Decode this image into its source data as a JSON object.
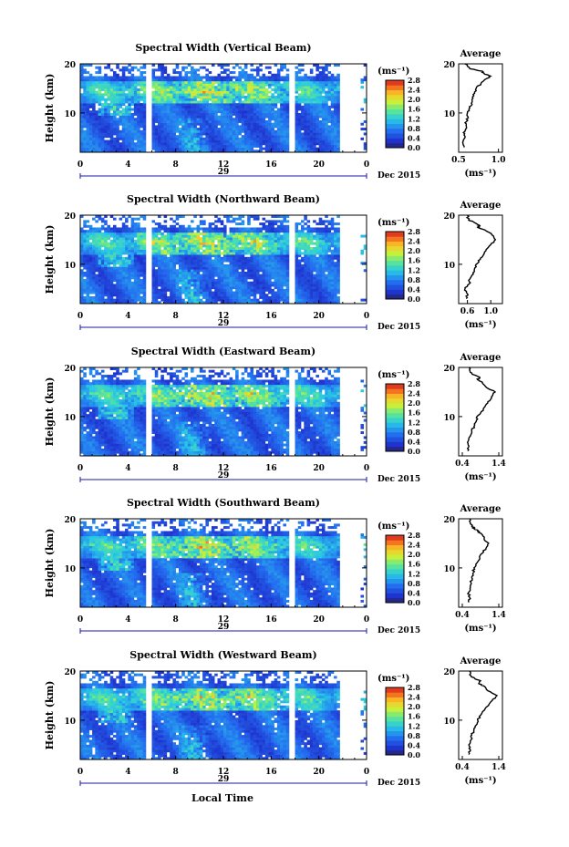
{
  "figure": {
    "panel_titles": [
      "Spectral Width (Vertical Beam)",
      "Spectral Width (Northward Beam)",
      "Spectral Width (Eastward Beam)",
      "Spectral Width (Southward Beam)",
      "Spectral Width (Westward Beam)"
    ],
    "ylabel": "Height (km)",
    "date_label": "29",
    "month_label": "Dec 2015",
    "xlabel": "Local Time",
    "colorbar_unit": "(ms⁻¹)",
    "average_title": "Average",
    "average_unit": "(ms⁻¹)"
  },
  "chart_data": [
    {
      "type": "heatmap",
      "title": "Spectral Width (Vertical Beam)",
      "ylabel": "Height (km)",
      "x_ticks": [
        "0",
        "4",
        "8",
        "12",
        "16",
        "20",
        "0"
      ],
      "y_ticks": [
        "10",
        "20"
      ],
      "xlim": [
        0,
        24
      ],
      "ylim": [
        2,
        20
      ],
      "data_gaps_hours": [
        [
          5.5,
          6.0
        ],
        [
          17.6,
          18.1
        ],
        [
          21.8,
          22.7
        ]
      ],
      "colorbar_ticks": [
        "2.8",
        "2.4",
        "2.0",
        "1.6",
        "1.2",
        "0.8",
        "0.4",
        "0.0"
      ],
      "average_profile": {
        "title": "Average",
        "xlabel": "(ms⁻¹)",
        "x_ticks": [
          "0.5",
          "1.0"
        ],
        "xlim": [
          0.5,
          1.05
        ],
        "y_ticks": [
          "10",
          "20"
        ],
        "width": [
          0.57,
          0.55,
          0.58,
          0.56,
          0.6,
          0.58,
          0.62,
          0.61,
          0.64,
          0.66,
          0.68,
          0.7,
          0.72,
          0.78,
          0.85,
          0.9,
          0.82,
          0.8,
          0.64,
          0.58
        ],
        "height_km": [
          3,
          4,
          5,
          6,
          7,
          8,
          9,
          10,
          11,
          12,
          13,
          14,
          15,
          16,
          17,
          17.5,
          18,
          18.5,
          19,
          20
        ]
      }
    },
    {
      "type": "heatmap",
      "title": "Spectral Width (Northward Beam)",
      "ylabel": "Height (km)",
      "x_ticks": [
        "0",
        "4",
        "8",
        "12",
        "16",
        "20",
        "0"
      ],
      "y_ticks": [
        "10",
        "20"
      ],
      "xlim": [
        0,
        24
      ],
      "ylim": [
        2,
        20
      ],
      "data_gaps_hours": [
        [
          5.5,
          6.0
        ],
        [
          17.6,
          18.1
        ],
        [
          21.8,
          22.7
        ]
      ],
      "colorbar_ticks": [
        "2.8",
        "2.4",
        "2.0",
        "1.6",
        "1.2",
        "0.8",
        "0.4",
        "0.0"
      ],
      "average_profile": {
        "title": "Average",
        "xlabel": "(ms⁻¹)",
        "x_ticks": [
          "0.6",
          "1.0"
        ],
        "xlim": [
          0.45,
          1.2
        ],
        "y_ticks": [
          "10",
          "20"
        ],
        "width": [
          0.58,
          0.6,
          0.56,
          0.63,
          0.64,
          0.7,
          0.72,
          0.75,
          0.82,
          0.88,
          0.92,
          1.0,
          1.08,
          1.02,
          0.9,
          0.78,
          0.8,
          0.72,
          0.62,
          0.6
        ],
        "height_km": [
          3,
          4,
          5,
          6,
          7,
          8,
          9,
          10,
          11,
          12,
          13,
          14,
          15,
          16,
          17,
          17.5,
          18,
          18.5,
          19,
          20
        ]
      }
    },
    {
      "type": "heatmap",
      "title": "Spectral Width (Eastward Beam)",
      "ylabel": "Height (km)",
      "x_ticks": [
        "0",
        "4",
        "8",
        "12",
        "16",
        "20",
        "0"
      ],
      "y_ticks": [
        "10",
        "20"
      ],
      "xlim": [
        0,
        24
      ],
      "ylim": [
        2,
        20
      ],
      "data_gaps_hours": [
        [
          5.5,
          6.0
        ],
        [
          17.6,
          18.1
        ],
        [
          21.8,
          22.7
        ]
      ],
      "colorbar_ticks": [
        "2.8",
        "2.4",
        "2.0",
        "1.6",
        "1.2",
        "0.8",
        "0.4",
        "0.0"
      ],
      "average_profile": {
        "title": "Average",
        "xlabel": "(ms⁻¹)",
        "x_ticks": [
          "0.4",
          "1.4"
        ],
        "xlim": [
          0.3,
          1.5
        ],
        "y_ticks": [
          "10",
          "20"
        ],
        "width": [
          0.55,
          0.58,
          0.56,
          0.62,
          0.66,
          0.72,
          0.78,
          0.8,
          0.92,
          1.02,
          1.1,
          1.2,
          1.3,
          1.05,
          0.95,
          0.82,
          0.88,
          0.72,
          0.62,
          0.58
        ],
        "height_km": [
          3,
          4,
          5,
          6,
          7,
          8,
          9,
          10,
          11,
          12,
          13,
          14,
          15,
          16,
          17,
          17.5,
          18,
          18.5,
          19,
          20
        ]
      }
    },
    {
      "type": "heatmap",
      "title": "Spectral Width (Southward Beam)",
      "ylabel": "Height (km)",
      "x_ticks": [
        "0",
        "4",
        "8",
        "12",
        "16",
        "20",
        "0"
      ],
      "y_ticks": [
        "10",
        "20"
      ],
      "xlim": [
        0,
        24
      ],
      "ylim": [
        2,
        20
      ],
      "data_gaps_hours": [
        [
          5.5,
          6.0
        ],
        [
          17.6,
          18.1
        ],
        [
          21.8,
          22.7
        ]
      ],
      "colorbar_ticks": [
        "2.8",
        "2.4",
        "2.0",
        "1.6",
        "1.2",
        "0.8",
        "0.4",
        "0.0"
      ],
      "average_profile": {
        "title": "Average",
        "xlabel": "(ms⁻¹)",
        "x_ticks": [
          "0.4",
          "1.4"
        ],
        "xlim": [
          0.3,
          1.5
        ],
        "y_ticks": [
          "10",
          "20"
        ],
        "width": [
          0.58,
          0.6,
          0.57,
          0.62,
          0.64,
          0.66,
          0.7,
          0.72,
          0.8,
          0.88,
          0.95,
          1.05,
          1.12,
          1.0,
          0.92,
          0.82,
          0.74,
          0.66,
          0.62,
          0.6
        ],
        "height_km": [
          3,
          4,
          5,
          6,
          7,
          8,
          9,
          10,
          11,
          12,
          13,
          14,
          15,
          16,
          17,
          17.5,
          18,
          18.5,
          19,
          20
        ]
      }
    },
    {
      "type": "heatmap",
      "title": "Spectral Width (Westward Beam)",
      "ylabel": "Height (km)",
      "x_ticks": [
        "0",
        "4",
        "8",
        "12",
        "16",
        "20",
        "0"
      ],
      "y_ticks": [
        "10",
        "20"
      ],
      "xlim": [
        0,
        24
      ],
      "ylim": [
        2,
        20
      ],
      "data_gaps_hours": [
        [
          5.5,
          6.0
        ],
        [
          17.6,
          18.1
        ],
        [
          21.8,
          22.7
        ]
      ],
      "colorbar_ticks": [
        "2.8",
        "2.4",
        "2.0",
        "1.6",
        "1.2",
        "0.8",
        "0.4",
        "0.0"
      ],
      "average_profile": {
        "title": "Average",
        "xlabel": "(ms⁻¹)",
        "x_ticks": [
          "0.4",
          "1.4"
        ],
        "xlim": [
          0.3,
          1.5
        ],
        "y_ticks": [
          "10",
          "20"
        ],
        "width": [
          0.58,
          0.62,
          0.58,
          0.64,
          0.66,
          0.72,
          0.78,
          0.82,
          0.9,
          1.0,
          1.12,
          1.22,
          1.35,
          1.1,
          0.98,
          0.85,
          0.9,
          0.74,
          0.64,
          0.6
        ],
        "height_km": [
          3,
          4,
          5,
          6,
          7,
          8,
          9,
          10,
          11,
          12,
          13,
          14,
          15,
          16,
          17,
          17.5,
          18,
          18.5,
          19,
          20
        ]
      }
    }
  ]
}
